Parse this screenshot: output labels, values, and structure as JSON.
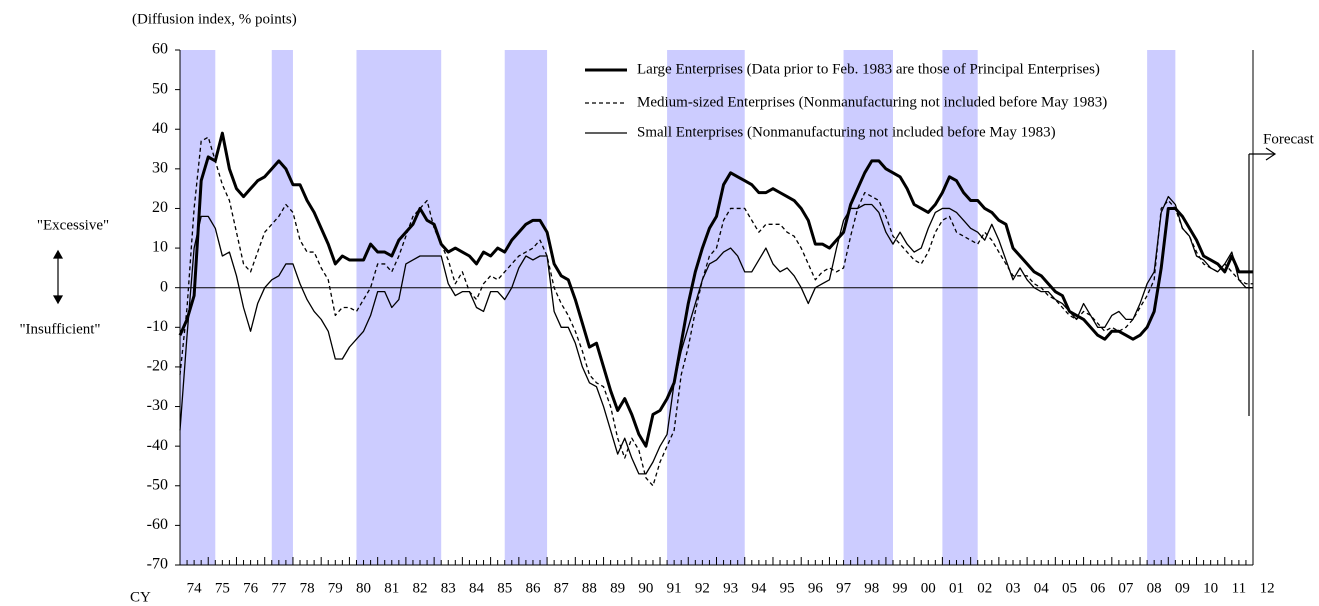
{
  "chart_data": {
    "type": "line",
    "subtitle": "(Diffusion index, % points)",
    "x_unit_label": "CY",
    "annotations": [
      "\"Excessive\"",
      "\"Insufficient\"",
      "Forecast"
    ],
    "xlim": [
      1974,
      2012
    ],
    "ylim": [
      -70,
      60
    ],
    "yticks": [
      -70,
      -60,
      -50,
      -40,
      -30,
      -20,
      -10,
      0,
      10,
      20,
      30,
      40,
      50,
      60
    ],
    "xticks": [
      {
        "value": 1974,
        "label": "74"
      },
      {
        "value": 1975,
        "label": "75"
      },
      {
        "value": 1976,
        "label": "76"
      },
      {
        "value": 1977,
        "label": "77"
      },
      {
        "value": 1978,
        "label": "78"
      },
      {
        "value": 1979,
        "label": "79"
      },
      {
        "value": 1980,
        "label": "80"
      },
      {
        "value": 1981,
        "label": "81"
      },
      {
        "value": 1982,
        "label": "82"
      },
      {
        "value": 1983,
        "label": "83"
      },
      {
        "value": 1984,
        "label": "84"
      },
      {
        "value": 1985,
        "label": "85"
      },
      {
        "value": 1986,
        "label": "86"
      },
      {
        "value": 1987,
        "label": "87"
      },
      {
        "value": 1988,
        "label": "88"
      },
      {
        "value": 1989,
        "label": "89"
      },
      {
        "value": 1990,
        "label": "90"
      },
      {
        "value": 1991,
        "label": "91"
      },
      {
        "value": 1992,
        "label": "92"
      },
      {
        "value": 1993,
        "label": "93"
      },
      {
        "value": 1994,
        "label": "94"
      },
      {
        "value": 1995,
        "label": "95"
      },
      {
        "value": 1996,
        "label": "96"
      },
      {
        "value": 1997,
        "label": "97"
      },
      {
        "value": 1998,
        "label": "98"
      },
      {
        "value": 1999,
        "label": "99"
      },
      {
        "value": 2000,
        "label": "00"
      },
      {
        "value": 2001,
        "label": "01"
      },
      {
        "value": 2002,
        "label": "02"
      },
      {
        "value": 2003,
        "label": "03"
      },
      {
        "value": 2004,
        "label": "04"
      },
      {
        "value": 2005,
        "label": "05"
      },
      {
        "value": 2006,
        "label": "06"
      },
      {
        "value": 2007,
        "label": "07"
      },
      {
        "value": 2008,
        "label": "08"
      },
      {
        "value": 2009,
        "label": "09"
      },
      {
        "value": 2010,
        "label": "10"
      },
      {
        "value": 2011,
        "label": "11"
      },
      {
        "value": 2012,
        "label": "12"
      }
    ],
    "grid": false,
    "reference_line": 0,
    "shaded_periods": [
      [
        1974,
        1975.25
      ],
      [
        1977.25,
        1978
      ],
      [
        1980.25,
        1983.25
      ],
      [
        1985.5,
        1987
      ],
      [
        1991.25,
        1994
      ],
      [
        1997.5,
        1999.25
      ],
      [
        2001,
        2002.25
      ],
      [
        2008.25,
        2009.25
      ]
    ],
    "shade_color": "#ccccff",
    "legend": "upper right",
    "x": [
      1974,
      1974.25,
      1974.5,
      1974.75,
      1975,
      1975.25,
      1975.5,
      1975.75,
      1976,
      1976.25,
      1976.5,
      1976.75,
      1977,
      1977.25,
      1977.5,
      1977.75,
      1978,
      1978.25,
      1978.5,
      1978.75,
      1979,
      1979.25,
      1979.5,
      1979.75,
      1980,
      1980.25,
      1980.5,
      1980.75,
      1981,
      1981.25,
      1981.5,
      1981.75,
      1982,
      1982.25,
      1982.5,
      1982.75,
      1983,
      1983.25,
      1983.5,
      1983.75,
      1984,
      1984.25,
      1984.5,
      1984.75,
      1985,
      1985.25,
      1985.5,
      1985.75,
      1986,
      1986.25,
      1986.5,
      1986.75,
      1987,
      1987.25,
      1987.5,
      1987.75,
      1988,
      1988.25,
      1988.5,
      1988.75,
      1989,
      1989.25,
      1989.5,
      1989.75,
      1990,
      1990.25,
      1990.5,
      1990.75,
      1991,
      1991.25,
      1991.5,
      1991.75,
      1992,
      1992.25,
      1992.5,
      1992.75,
      1993,
      1993.25,
      1993.5,
      1993.75,
      1994,
      1994.25,
      1994.5,
      1994.75,
      1995,
      1995.25,
      1995.5,
      1995.75,
      1996,
      1996.25,
      1996.5,
      1996.75,
      1997,
      1997.25,
      1997.5,
      1997.75,
      1998,
      1998.25,
      1998.5,
      1998.75,
      1999,
      1999.25,
      1999.5,
      1999.75,
      2000,
      2000.25,
      2000.5,
      2000.75,
      2001,
      2001.25,
      2001.5,
      2001.75,
      2002,
      2002.25,
      2002.5,
      2002.75,
      2003,
      2003.25,
      2003.5,
      2003.75,
      2004,
      2004.25,
      2004.5,
      2004.75,
      2005,
      2005.25,
      2005.5,
      2005.75,
      2006,
      2006.25,
      2006.5,
      2006.75,
      2007,
      2007.25,
      2007.5,
      2007.75,
      2008,
      2008.25,
      2008.5,
      2008.75,
      2009,
      2009.25,
      2009.5,
      2009.75,
      2010,
      2010.25,
      2010.5,
      2010.75,
      2011,
      2011.25,
      2011.5,
      2011.75,
      2012
    ],
    "series": [
      {
        "name": "Large Enterprises (Data prior to Feb. 1983 are those of Principal Enterprises)",
        "color": "#000000",
        "dash": "solid",
        "width": 3,
        "values": [
          -12,
          -8,
          -2,
          27,
          33,
          32,
          39,
          30,
          25,
          23,
          25,
          27,
          28,
          30,
          32,
          30,
          26,
          26,
          22,
          19,
          15,
          11,
          6,
          8,
          7,
          7,
          7,
          11,
          9,
          9,
          8,
          12,
          14,
          16,
          20,
          17,
          16,
          11,
          9,
          10,
          9,
          8,
          6,
          9,
          8,
          10,
          9,
          12,
          14,
          16,
          17,
          17,
          14,
          6,
          3,
          2,
          -3,
          -9,
          -15,
          -14,
          -20,
          -26,
          -31,
          -28,
          -32,
          -37,
          -40,
          -32,
          -31,
          -28,
          -24,
          -14,
          -4,
          4,
          10,
          15,
          18,
          26,
          29,
          28,
          27,
          26,
          24,
          24,
          25,
          24,
          23,
          22,
          20,
          17,
          11,
          11,
          10,
          12,
          14,
          21,
          25,
          29,
          32,
          32,
          30,
          29,
          28,
          25,
          21,
          20,
          19,
          21,
          24,
          28,
          27,
          24,
          22,
          22,
          20,
          19,
          17,
          16,
          10,
          8,
          6,
          4,
          3,
          1,
          -1,
          -2,
          -6,
          -7,
          -8,
          -10,
          -12,
          -13,
          -11,
          -11,
          -12,
          -13,
          -12,
          -10,
          -6,
          5,
          20,
          20,
          18,
          15,
          12,
          8,
          7,
          6,
          4,
          8,
          4,
          4,
          4
        ]
      },
      {
        "name": "Medium-sized Enterprises (Nonmanufacturing not included before May 1983)",
        "color": "#000000",
        "dash": "dashed",
        "width": 1.3,
        "values": [
          -22,
          -5,
          20,
          37,
          38,
          32,
          26,
          22,
          14,
          6,
          4,
          9,
          14,
          16,
          18,
          21,
          19,
          12,
          9,
          9,
          5,
          2,
          -7,
          -5,
          -5,
          -6,
          -3,
          0,
          6,
          6,
          4,
          8,
          13,
          18,
          20,
          22,
          15,
          11,
          7,
          1,
          4,
          -1,
          -3,
          1,
          3,
          2,
          4,
          6,
          8,
          9,
          10,
          12,
          8,
          0,
          -4,
          -7,
          -11,
          -16,
          -22,
          -24,
          -25,
          -30,
          -38,
          -43,
          -38,
          -41,
          -48,
          -50,
          -44,
          -40,
          -36,
          -22,
          -15,
          -6,
          2,
          8,
          10,
          17,
          20,
          20,
          20,
          17,
          14,
          16,
          16,
          16,
          14,
          13,
          10,
          6,
          2,
          4,
          5,
          4,
          5,
          13,
          20,
          24,
          23,
          22,
          18,
          13,
          11,
          9,
          7,
          6,
          9,
          14,
          17,
          18,
          14,
          13,
          12,
          11,
          14,
          12,
          9,
          6,
          3,
          3,
          3,
          1,
          0,
          -2,
          -3,
          -5,
          -7,
          -8,
          -6,
          -7,
          -9,
          -11,
          -10,
          -11,
          -10,
          -8,
          -5,
          -2,
          2,
          20,
          22,
          20,
          15,
          13,
          9,
          6,
          5,
          4,
          6,
          4,
          2,
          1,
          1
        ]
      },
      {
        "name": "Small Enterprises (Nonmanufacturing not included before May 1983)",
        "color": "#000000",
        "dash": "solid",
        "width": 1.3,
        "values": [
          -36,
          -12,
          10,
          18,
          18,
          15,
          8,
          9,
          3,
          -5,
          -11,
          -4,
          0,
          2,
          3,
          6,
          6,
          1,
          -3,
          -6,
          -8,
          -11,
          -18,
          -18,
          -15,
          -13,
          -11,
          -7,
          -1,
          -1,
          -5,
          -3,
          6,
          7,
          8,
          8,
          8,
          8,
          1,
          -2,
          -1,
          -1,
          -5,
          -6,
          -1,
          -1,
          -3,
          0,
          5,
          8,
          7,
          8,
          8,
          -6,
          -10,
          -10,
          -14,
          -20,
          -24,
          -25,
          -30,
          -36,
          -42,
          -38,
          -43,
          -47,
          -47,
          -44,
          -40,
          -37,
          -24,
          -16,
          -10,
          -4,
          2,
          6,
          7,
          9,
          10,
          8,
          4,
          4,
          7,
          10,
          6,
          4,
          5,
          3,
          0,
          -4,
          0,
          1,
          2,
          10,
          17,
          20,
          20,
          21,
          21,
          19,
          14,
          11,
          14,
          11,
          9,
          10,
          15,
          19,
          20,
          20,
          19,
          17,
          15,
          14,
          12,
          16,
          12,
          7,
          2,
          5,
          2,
          0,
          -1,
          -1,
          -3,
          -4,
          -6,
          -8,
          -4,
          -7,
          -10,
          -10,
          -7,
          -6,
          -8,
          -8,
          -4,
          1,
          4,
          19,
          23,
          21,
          15,
          13,
          8,
          7,
          5,
          4,
          6,
          9,
          2,
          0,
          0
        ]
      }
    ]
  }
}
